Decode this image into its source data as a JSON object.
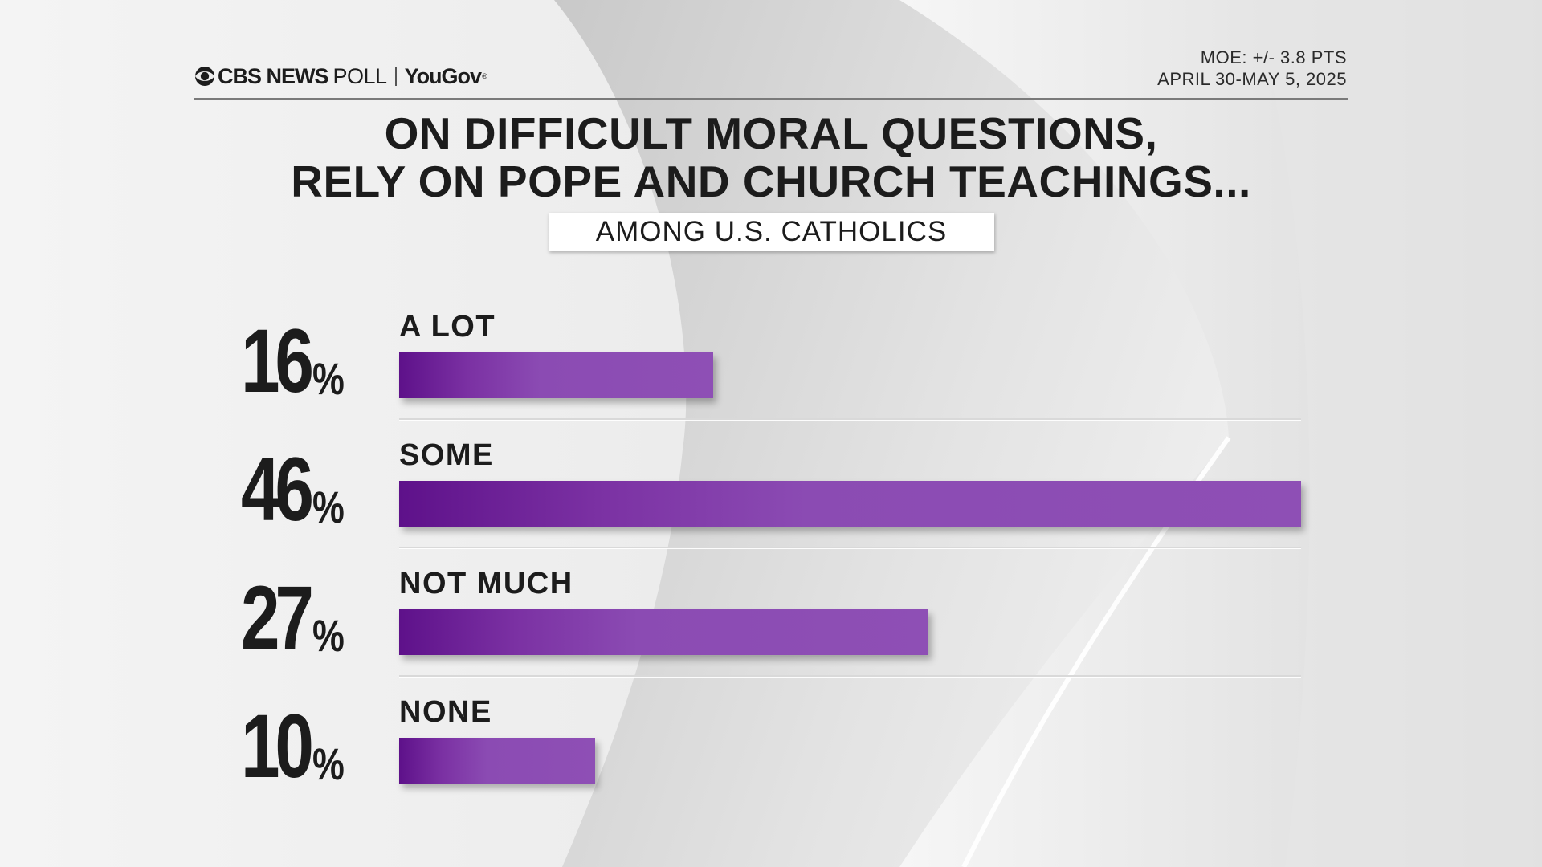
{
  "header": {
    "brand_cbs": "CBS NEWS",
    "brand_poll": "POLL",
    "brand_partner": "YouGov",
    "brand_partner_mark": "®",
    "moe": "MOE: +/- 3.8 PTS",
    "dates": "APRIL 30-MAY 5, 2025"
  },
  "title_line1": "ON DIFFICULT MORAL QUESTIONS,",
  "title_line2": "RELY ON POPE AND CHURCH TEACHINGS...",
  "subtitle": "AMONG U.S. CATHOLICS",
  "colors": {
    "bar_dark": "#5e118a",
    "bar_light": "#8e4fb5",
    "text": "#1c1c1c"
  },
  "chart_data": {
    "type": "bar",
    "orientation": "horizontal",
    "title": "ON DIFFICULT MORAL QUESTIONS, RELY ON POPE AND CHURCH TEACHINGS...",
    "subtitle": "AMONG U.S. CATHOLICS",
    "categories": [
      "A LOT",
      "SOME",
      "NOT MUCH",
      "NONE"
    ],
    "values": [
      16,
      46,
      27,
      10
    ],
    "value_labels": [
      "16",
      "46",
      "27",
      "10"
    ],
    "unit": "%",
    "xlim": [
      0,
      46
    ],
    "grid": false,
    "legend": "none"
  }
}
